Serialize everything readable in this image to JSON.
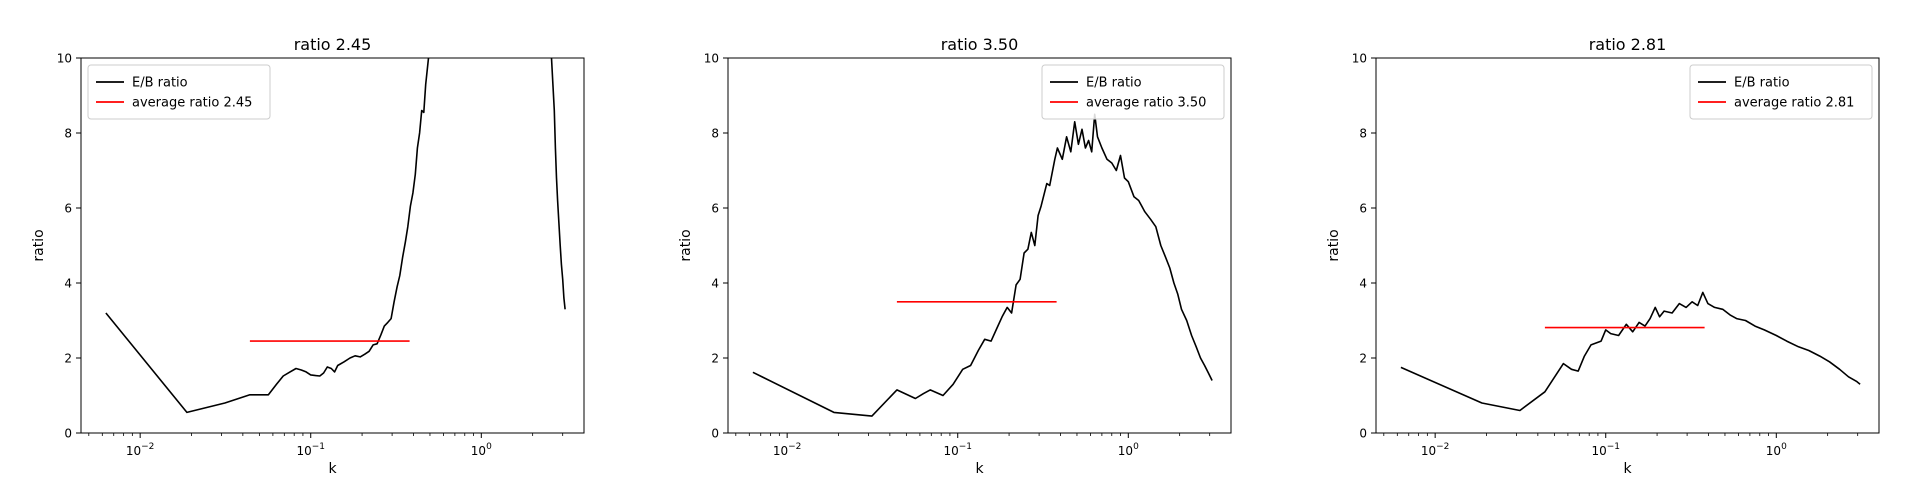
{
  "chart_data": [
    {
      "type": "line",
      "title": "ratio 2.45",
      "xlabel": "k",
      "ylabel": "ratio",
      "xscale": "log",
      "xlim": [
        0.0045,
        4.0
      ],
      "ylim": [
        0,
        10
      ],
      "yticks": [
        "0",
        "2",
        "4",
        "6",
        "8",
        "10"
      ],
      "xticks": [
        {
          "base": "10",
          "exp": "−2",
          "value": 0.01
        },
        {
          "base": "10",
          "exp": "−1",
          "value": 0.1
        },
        {
          "base": "10",
          "exp": "0",
          "value": 1
        }
      ],
      "legend": {
        "position": "upper left",
        "entries": [
          "E/B ratio",
          "average ratio 2.45"
        ]
      },
      "series": [
        {
          "name": "E/B ratio",
          "color": "#000000",
          "segments": [
            [
              [
                0.0063,
                3.2
              ],
              [
                0.0188,
                0.55
              ],
              [
                0.0314,
                0.8
              ],
              [
                0.044,
                1.02
              ],
              [
                0.0565,
                1.02
              ],
              [
                0.063,
                1.3
              ],
              [
                0.069,
                1.52
              ],
              [
                0.075,
                1.62
              ],
              [
                0.082,
                1.72
              ],
              [
                0.088,
                1.68
              ],
              [
                0.094,
                1.63
              ],
              [
                0.1,
                1.55
              ],
              [
                0.107,
                1.53
              ],
              [
                0.113,
                1.52
              ],
              [
                0.119,
                1.6
              ],
              [
                0.125,
                1.76
              ],
              [
                0.132,
                1.72
              ],
              [
                0.138,
                1.63
              ],
              [
                0.144,
                1.8
              ],
              [
                0.157,
                1.9
              ],
              [
                0.17,
                2.0
              ],
              [
                0.182,
                2.06
              ],
              [
                0.195,
                2.03
              ],
              [
                0.207,
                2.1
              ],
              [
                0.22,
                2.18
              ],
              [
                0.232,
                2.35
              ],
              [
                0.245,
                2.38
              ],
              [
                0.258,
                2.62
              ],
              [
                0.27,
                2.85
              ],
              [
                0.283,
                2.95
              ],
              [
                0.296,
                3.05
              ],
              [
                0.308,
                3.5
              ],
              [
                0.321,
                3.9
              ],
              [
                0.333,
                4.2
              ],
              [
                0.346,
                4.7
              ],
              [
                0.359,
                5.1
              ],
              [
                0.371,
                5.5
              ],
              [
                0.384,
                6.05
              ],
              [
                0.397,
                6.4
              ],
              [
                0.41,
                6.9
              ],
              [
                0.422,
                7.6
              ],
              [
                0.435,
                8.0
              ],
              [
                0.447,
                8.6
              ],
              [
                0.46,
                8.55
              ],
              [
                0.472,
                9.3
              ],
              [
                0.485,
                9.8
              ],
              [
                0.49,
                10.0
              ]
            ],
            [
              [
                2.58,
                10.0
              ],
              [
                2.63,
                9.3
              ],
              [
                2.68,
                8.6
              ],
              [
                2.72,
                7.6
              ],
              [
                2.76,
                6.8
              ],
              [
                2.8,
                6.2
              ],
              [
                2.85,
                5.6
              ],
              [
                2.9,
                5.0
              ],
              [
                2.95,
                4.5
              ],
              [
                3.0,
                4.1
              ],
              [
                3.05,
                3.6
              ],
              [
                3.1,
                3.3
              ]
            ]
          ]
        },
        {
          "name": "average ratio 2.45",
          "color": "#ff0000",
          "segments": [
            [
              [
                0.044,
                2.45
              ],
              [
                0.38,
                2.45
              ]
            ]
          ]
        }
      ]
    },
    {
      "type": "line",
      "title": "ratio 3.50",
      "xlabel": "k",
      "ylabel": "ratio",
      "xscale": "log",
      "xlim": [
        0.0045,
        4.0
      ],
      "ylim": [
        0,
        10
      ],
      "yticks": [
        "0",
        "2",
        "4",
        "6",
        "8",
        "10"
      ],
      "xticks": [
        {
          "base": "10",
          "exp": "−2",
          "value": 0.01
        },
        {
          "base": "10",
          "exp": "−1",
          "value": 0.1
        },
        {
          "base": "10",
          "exp": "0",
          "value": 1
        }
      ],
      "legend": {
        "position": "upper right",
        "entries": [
          "E/B ratio",
          "average ratio 3.50"
        ]
      },
      "series": [
        {
          "name": "E/B ratio",
          "color": "#000000",
          "segments": [
            [
              [
                0.0063,
                1.62
              ],
              [
                0.0188,
                0.55
              ],
              [
                0.0314,
                0.45
              ],
              [
                0.044,
                1.15
              ],
              [
                0.0565,
                0.92
              ],
              [
                0.063,
                1.05
              ],
              [
                0.069,
                1.15
              ],
              [
                0.082,
                1.0
              ],
              [
                0.094,
                1.3
              ],
              [
                0.107,
                1.7
              ],
              [
                0.119,
                1.8
              ],
              [
                0.132,
                2.2
              ],
              [
                0.144,
                2.5
              ],
              [
                0.157,
                2.45
              ],
              [
                0.17,
                2.8
              ],
              [
                0.182,
                3.1
              ],
              [
                0.195,
                3.35
              ],
              [
                0.207,
                3.2
              ],
              [
                0.22,
                3.95
              ],
              [
                0.232,
                4.1
              ],
              [
                0.245,
                4.8
              ],
              [
                0.258,
                4.9
              ],
              [
                0.27,
                5.35
              ],
              [
                0.283,
                5.0
              ],
              [
                0.296,
                5.8
              ],
              [
                0.308,
                6.05
              ],
              [
                0.333,
                6.65
              ],
              [
                0.346,
                6.6
              ],
              [
                0.371,
                7.3
              ],
              [
                0.384,
                7.6
              ],
              [
                0.41,
                7.3
              ],
              [
                0.435,
                7.9
              ],
              [
                0.46,
                7.5
              ],
              [
                0.485,
                8.3
              ],
              [
                0.51,
                7.7
              ],
              [
                0.535,
                8.1
              ],
              [
                0.56,
                7.6
              ],
              [
                0.585,
                7.8
              ],
              [
                0.61,
                7.5
              ],
              [
                0.635,
                8.5
              ],
              [
                0.66,
                7.9
              ],
              [
                0.7,
                7.6
              ],
              [
                0.75,
                7.3
              ],
              [
                0.8,
                7.2
              ],
              [
                0.85,
                7.0
              ],
              [
                0.9,
                7.4
              ],
              [
                0.95,
                6.8
              ],
              [
                1.0,
                6.7
              ],
              [
                1.08,
                6.3
              ],
              [
                1.15,
                6.2
              ],
              [
                1.25,
                5.9
              ],
              [
                1.35,
                5.7
              ],
              [
                1.45,
                5.5
              ],
              [
                1.55,
                5.0
              ],
              [
                1.65,
                4.7
              ],
              [
                1.75,
                4.4
              ],
              [
                1.85,
                4.0
              ],
              [
                1.95,
                3.7
              ],
              [
                2.05,
                3.3
              ],
              [
                2.2,
                3.0
              ],
              [
                2.35,
                2.6
              ],
              [
                2.5,
                2.3
              ],
              [
                2.65,
                2.0
              ],
              [
                2.8,
                1.8
              ],
              [
                2.95,
                1.6
              ],
              [
                3.1,
                1.4
              ]
            ]
          ]
        },
        {
          "name": "average ratio 3.50",
          "color": "#ff0000",
          "segments": [
            [
              [
                0.044,
                3.5
              ],
              [
                0.38,
                3.5
              ]
            ]
          ]
        }
      ]
    },
    {
      "type": "line",
      "title": "ratio 2.81",
      "xlabel": "k",
      "ylabel": "ratio",
      "xscale": "log",
      "xlim": [
        0.0045,
        4.0
      ],
      "ylim": [
        0,
        10
      ],
      "yticks": [
        "0",
        "2",
        "4",
        "6",
        "8",
        "10"
      ],
      "xticks": [
        {
          "base": "10",
          "exp": "−2",
          "value": 0.01
        },
        {
          "base": "10",
          "exp": "−1",
          "value": 0.1
        },
        {
          "base": "10",
          "exp": "0",
          "value": 1
        }
      ],
      "legend": {
        "position": "upper right",
        "entries": [
          "E/B ratio",
          "average ratio 2.81"
        ]
      },
      "series": [
        {
          "name": "E/B ratio",
          "color": "#000000",
          "segments": [
            [
              [
                0.0063,
                1.75
              ],
              [
                0.0188,
                0.8
              ],
              [
                0.0314,
                0.6
              ],
              [
                0.044,
                1.1
              ],
              [
                0.0565,
                1.85
              ],
              [
                0.063,
                1.7
              ],
              [
                0.069,
                1.65
              ],
              [
                0.075,
                2.05
              ],
              [
                0.082,
                2.35
              ],
              [
                0.094,
                2.45
              ],
              [
                0.1,
                2.75
              ],
              [
                0.107,
                2.65
              ],
              [
                0.119,
                2.6
              ],
              [
                0.132,
                2.9
              ],
              [
                0.144,
                2.7
              ],
              [
                0.157,
                2.95
              ],
              [
                0.17,
                2.85
              ],
              [
                0.182,
                3.05
              ],
              [
                0.195,
                3.35
              ],
              [
                0.207,
                3.1
              ],
              [
                0.22,
                3.25
              ],
              [
                0.245,
                3.2
              ],
              [
                0.27,
                3.45
              ],
              [
                0.296,
                3.35
              ],
              [
                0.321,
                3.5
              ],
              [
                0.346,
                3.4
              ],
              [
                0.371,
                3.75
              ],
              [
                0.397,
                3.45
              ],
              [
                0.435,
                3.35
              ],
              [
                0.485,
                3.3
              ],
              [
                0.535,
                3.15
              ],
              [
                0.585,
                3.05
              ],
              [
                0.66,
                3.0
              ],
              [
                0.75,
                2.85
              ],
              [
                0.85,
                2.75
              ],
              [
                1.0,
                2.6
              ],
              [
                1.15,
                2.45
              ],
              [
                1.35,
                2.3
              ],
              [
                1.55,
                2.2
              ],
              [
                1.8,
                2.05
              ],
              [
                2.05,
                1.9
              ],
              [
                2.35,
                1.7
              ],
              [
                2.65,
                1.5
              ],
              [
                2.95,
                1.38
              ],
              [
                3.1,
                1.3
              ]
            ]
          ]
        },
        {
          "name": "average ratio 2.81",
          "color": "#ff0000",
          "segments": [
            [
              [
                0.044,
                2.81
              ],
              [
                0.38,
                2.81
              ]
            ]
          ]
        }
      ]
    }
  ]
}
